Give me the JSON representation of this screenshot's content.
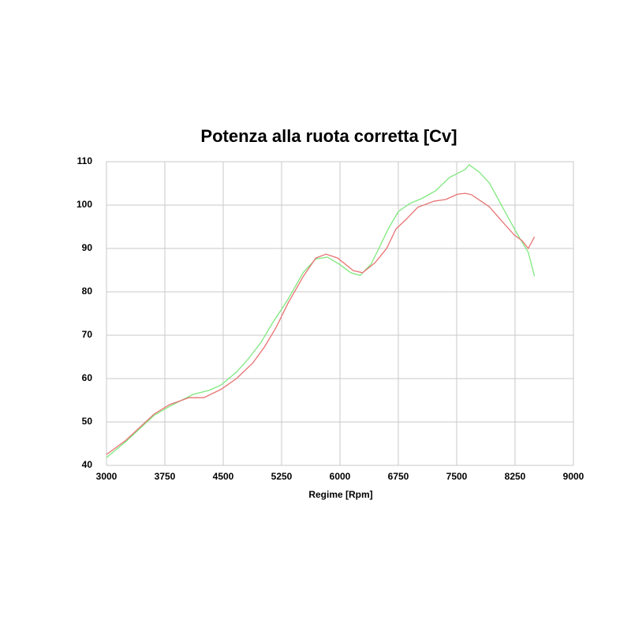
{
  "chart_data": {
    "type": "line",
    "title": "Potenza alla ruota corretta [Cv]",
    "x_label": "Regime [Rpm]",
    "xlim": [
      3000,
      9000
    ],
    "xticks": [
      3000,
      3750,
      4500,
      5250,
      6000,
      6750,
      7500,
      8250,
      9000
    ],
    "ylim": [
      40,
      110
    ],
    "yticks": [
      40,
      50,
      60,
      70,
      80,
      90,
      100,
      110
    ],
    "grid": true,
    "series": [
      {
        "color": "#7ee87e",
        "x": [
          3000,
          3250,
          3610,
          3810,
          4120,
          4320,
          4470,
          4670,
          4820,
          4980,
          5130,
          5330,
          5530,
          5690,
          5840,
          5990,
          6140,
          6260,
          6400,
          6500,
          6620,
          6750,
          6900,
          7050,
          7230,
          7410,
          7610,
          7660,
          7790,
          7920,
          8120,
          8270,
          8420,
          8500
        ],
        "values": [
          41.8,
          45.5,
          51.5,
          53.6,
          56.4,
          57.3,
          58.5,
          61.5,
          64.5,
          68.2,
          72.7,
          78.2,
          84.5,
          87.6,
          88,
          86.4,
          84.4,
          83.8,
          86.4,
          90,
          94.5,
          98.5,
          100.4,
          101.5,
          103.3,
          106.4,
          108.2,
          109.3,
          107.6,
          105.1,
          98.5,
          93.6,
          89.1,
          83.6
        ]
      },
      {
        "color": "#e87272",
        "x": [
          3000,
          3250,
          3610,
          3810,
          4060,
          4250,
          4470,
          4670,
          4880,
          5030,
          5180,
          5330,
          5530,
          5690,
          5820,
          5970,
          6170,
          6290,
          6450,
          6600,
          6720,
          6850,
          7000,
          7210,
          7360,
          7510,
          7610,
          7690,
          7920,
          8120,
          8240,
          8340,
          8420,
          8500
        ],
        "values": [
          42.5,
          45.8,
          51.8,
          54,
          55.6,
          55.6,
          57.5,
          60,
          63.6,
          67.3,
          71.8,
          77.3,
          83.6,
          87.8,
          88.7,
          87.8,
          84.9,
          84.4,
          86.7,
          90,
          94.5,
          96.7,
          99.5,
          100.9,
          101.3,
          102.5,
          102.7,
          102.4,
          99.6,
          95.5,
          93.1,
          91.8,
          90,
          92.7
        ]
      }
    ]
  }
}
